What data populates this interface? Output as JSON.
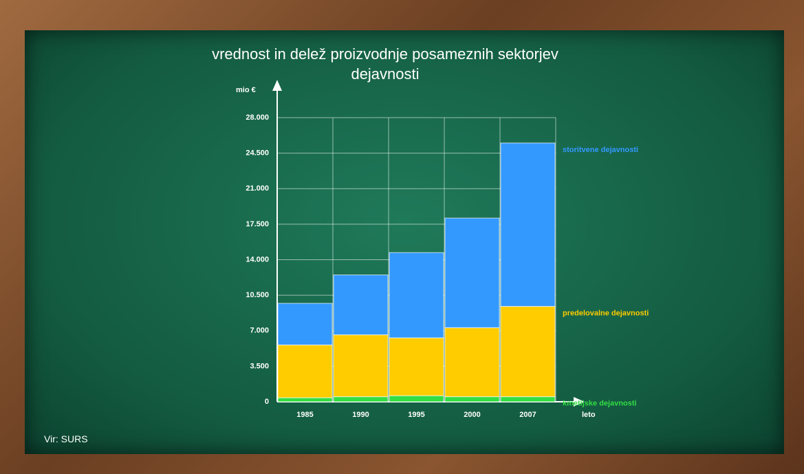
{
  "chart_data": {
    "type": "stacked_bar",
    "title": "vrednost in delež proizvodnje posameznih sektorjev dejavnosti",
    "y_label": "mio €",
    "x_label": "leto",
    "source": "Vir: SURS",
    "categories": [
      "1985",
      "1990",
      "1995",
      "2000",
      "2007"
    ],
    "series": [
      {
        "name": "kmetijske dejavnosti",
        "color": "#33dd44",
        "values": [
          400,
          500,
          600,
          500,
          500
        ]
      },
      {
        "name": "predelovalne dejavnosti",
        "color": "#ffcc00",
        "values": [
          5200,
          6100,
          5700,
          6800,
          8900
        ]
      },
      {
        "name": "storitvene dejavnosti",
        "color": "#3399ff",
        "values": [
          4100,
          5900,
          8400,
          10800,
          16100
        ]
      }
    ],
    "ylim": [
      0,
      28000
    ],
    "yticks": [
      0,
      {
        "value": 3500,
        "label": "3.500"
      },
      {
        "value": 7000,
        "label": "7.000"
      },
      {
        "value": 10500,
        "label": "10.500"
      },
      {
        "value": 14000,
        "label": "14.000"
      },
      {
        "value": 17500,
        "label": "17.500"
      },
      {
        "value": 21000,
        "label": "21.000"
      },
      {
        "value": 24500,
        "label": "24.500"
      },
      {
        "value": 28000,
        "label": "28.000"
      }
    ],
    "grid": true
  }
}
